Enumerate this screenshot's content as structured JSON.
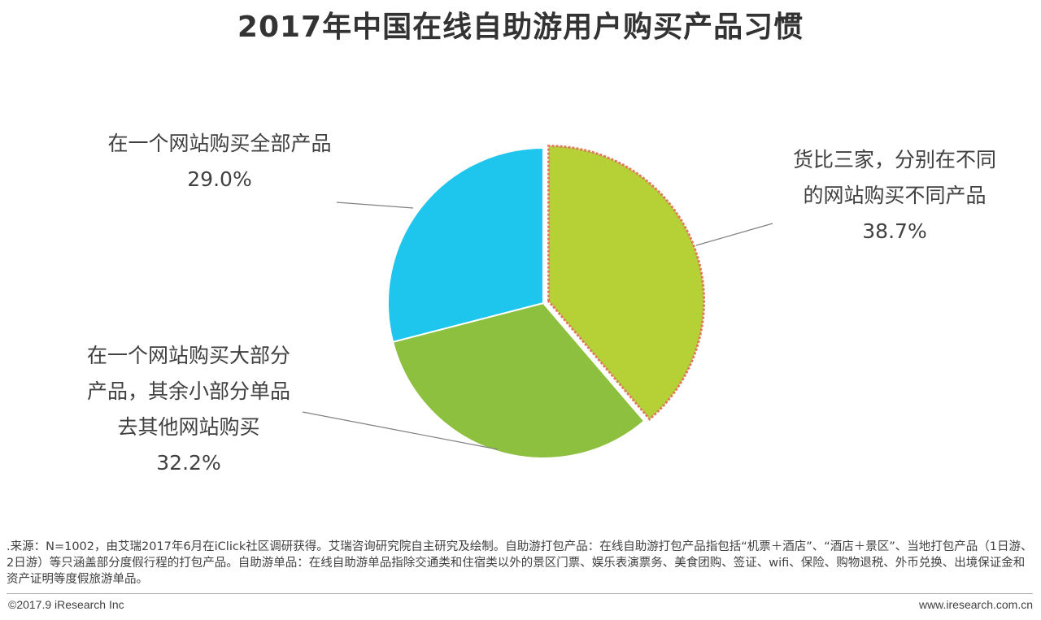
{
  "chart_data": {
    "type": "pie",
    "title": "2017年中国在线自助游用户购买产品习惯",
    "slices": [
      {
        "label_lines": [
          "货比三家，分别在不同",
          "的网站购买不同产品"
        ],
        "value": 38.7,
        "value_text": "38.7%",
        "color": "#b5d136",
        "exploded": true,
        "outline": "#e07a5f"
      },
      {
        "label_lines": [
          "在一个网站购买大部分",
          "产品，其余小部分单品",
          "去其他网站购买"
        ],
        "value": 32.2,
        "value_text": "32.2%",
        "color": "#8dc03f",
        "exploded": false
      },
      {
        "label_lines": [
          "在一个网站购买全部产品"
        ],
        "value": 29.0,
        "value_text": "29.0%",
        "color": "#1ec6ee",
        "exploded": false
      }
    ],
    "start_angle_deg": 0,
    "direction": "clockwise"
  },
  "footer": {
    "note": ".来源：N=1002，由艾瑞2017年6月在iClick社区调研获得。艾瑞咨询研究院自主研究及绘制。自助游打包产品：在线自助游打包产品指包括“机票＋酒店”、“酒店＋景区”、当地打包产品（1日游、2日游）等只涵盖部分度假行程的打包产品。自助游单品：在线自助游单品指除交通类和住宿类以外的景区门票、娱乐表演票务、美食团购、签证、wifi、保险、购物退税、外币兑换、出境保证金和资产证明等度假旅游单品。",
    "copyright": "©2017.9 iResearch Inc",
    "website": "www.iresearch.com.cn"
  }
}
